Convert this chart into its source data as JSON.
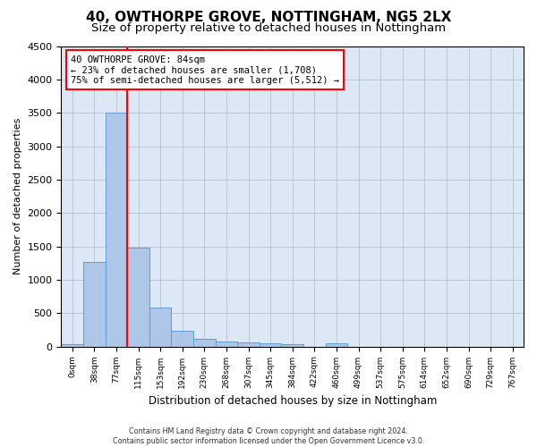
{
  "title": "40, OWTHORPE GROVE, NOTTINGHAM, NG5 2LX",
  "subtitle": "Size of property relative to detached houses in Nottingham",
  "xlabel": "Distribution of detached houses by size in Nottingham",
  "ylabel": "Number of detached properties",
  "bar_values": [
    40,
    1270,
    3500,
    1480,
    580,
    240,
    115,
    80,
    60,
    45,
    40,
    0,
    50,
    0,
    0,
    0,
    0,
    0,
    0,
    0,
    0
  ],
  "bar_labels": [
    "0sqm",
    "38sqm",
    "77sqm",
    "115sqm",
    "153sqm",
    "192sqm",
    "230sqm",
    "268sqm",
    "307sqm",
    "345sqm",
    "384sqm",
    "422sqm",
    "460sqm",
    "499sqm",
    "537sqm",
    "575sqm",
    "614sqm",
    "652sqm",
    "690sqm",
    "729sqm",
    "767sqm"
  ],
  "bar_color": "#aec6e8",
  "bar_edge_color": "#5a9fd4",
  "ax_bg_color": "#dce8f5",
  "ylim": [
    0,
    4500
  ],
  "yticks": [
    0,
    500,
    1000,
    1500,
    2000,
    2500,
    3000,
    3500,
    4000,
    4500
  ],
  "red_line_x": 2,
  "annotation_title": "40 OWTHORPE GROVE: 84sqm",
  "annotation_line1": "← 23% of detached houses are smaller (1,708)",
  "annotation_line2": "75% of semi-detached houses are larger (5,512) →",
  "footer_line1": "Contains HM Land Registry data © Crown copyright and database right 2024.",
  "footer_line2": "Contains public sector information licensed under the Open Government Licence v3.0.",
  "bg_color": "#ffffff",
  "grid_color": "#b0b8c8",
  "title_fontsize": 11,
  "subtitle_fontsize": 9.5
}
